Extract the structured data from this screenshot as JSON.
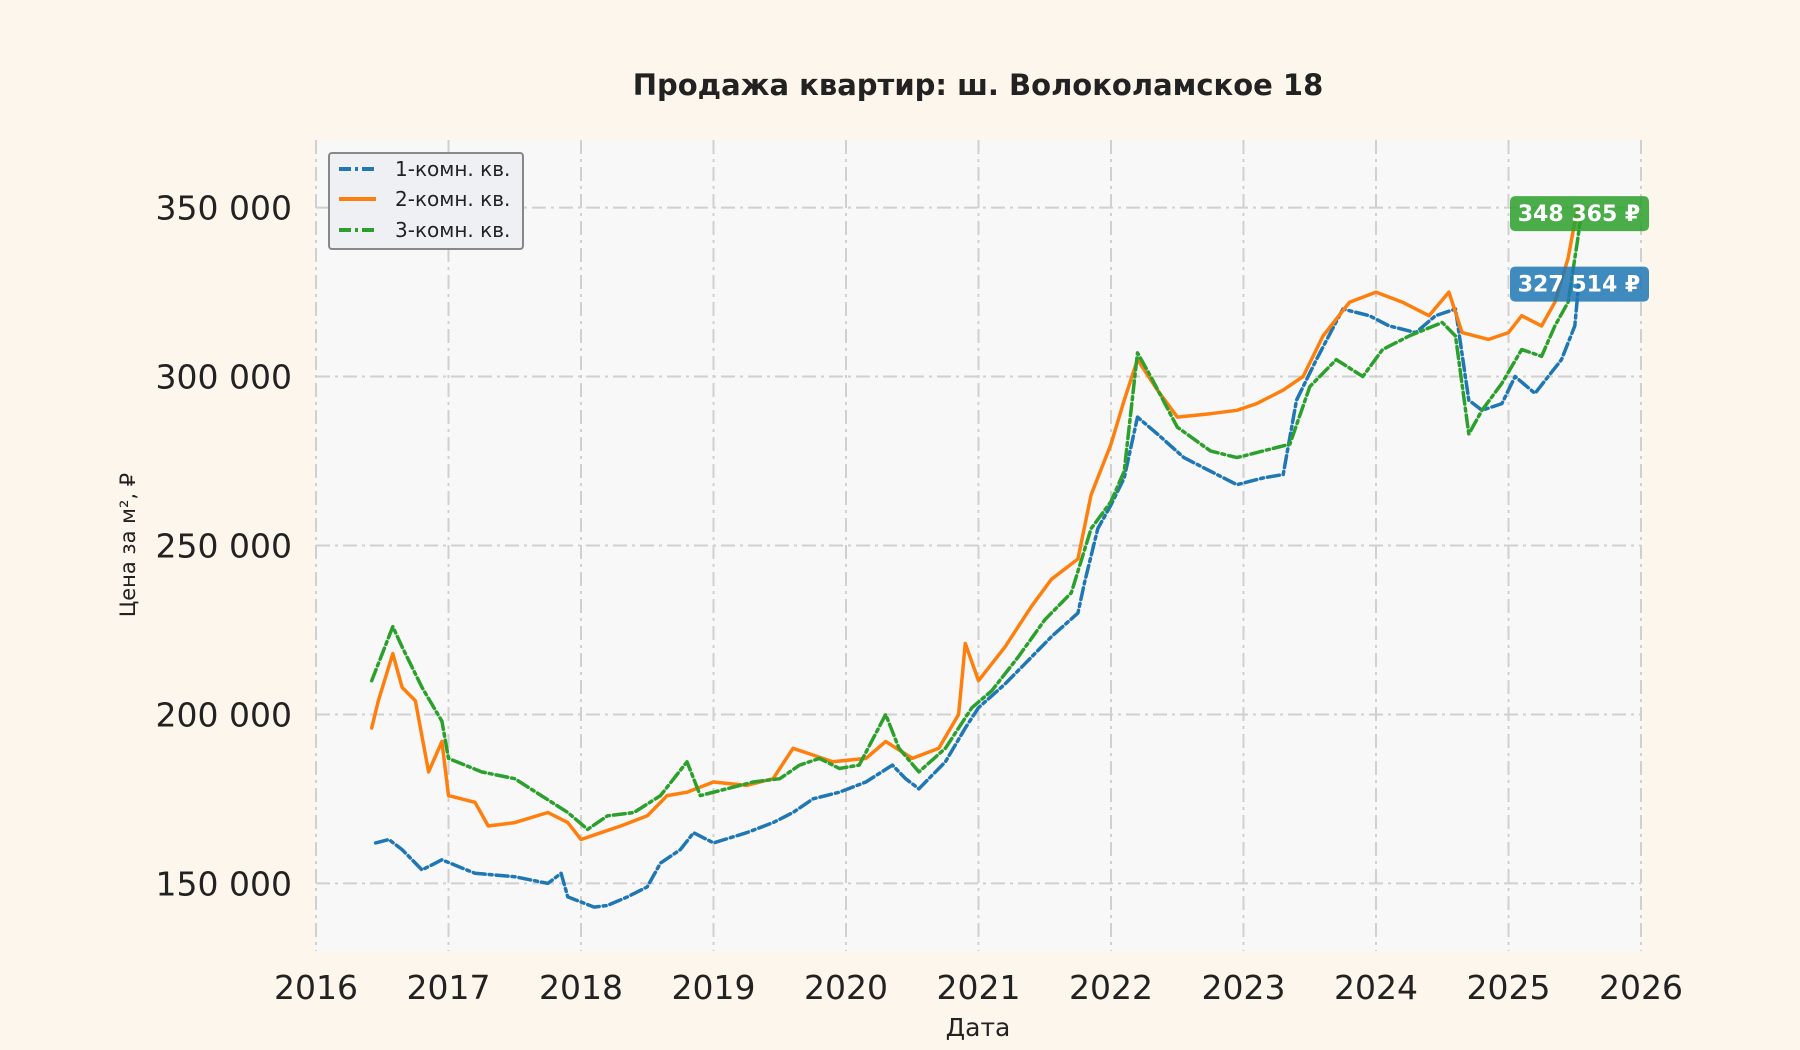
{
  "chart_data": {
    "type": "line",
    "title": "Продажа квартир: ш. Волоколамское 18",
    "xlabel": "Дата",
    "ylabel": "Цена за м², ₽",
    "xlim": [
      2016.0,
      2026.0
    ],
    "ylim": [
      130000,
      370000
    ],
    "x_ticks": [
      "2016",
      "2017",
      "2018",
      "2019",
      "2020",
      "2021",
      "2022",
      "2023",
      "2024",
      "2025",
      "2026"
    ],
    "y_ticks": [
      {
        "value": 150000,
        "label": "150 000"
      },
      {
        "value": 200000,
        "label": "200 000"
      },
      {
        "value": 250000,
        "label": "250 000"
      },
      {
        "value": 300000,
        "label": "300 000"
      },
      {
        "value": 350000,
        "label": "350 000"
      }
    ],
    "grid": true,
    "legend_position": "top-left",
    "series": [
      {
        "name": "1-комн. кв.",
        "color": "#1f77b4",
        "dash": "dashdot",
        "points": [
          [
            2016.45,
            162000
          ],
          [
            2016.55,
            163000
          ],
          [
            2016.65,
            160000
          ],
          [
            2016.8,
            154000
          ],
          [
            2016.95,
            157000
          ],
          [
            2017.2,
            153000
          ],
          [
            2017.5,
            152000
          ],
          [
            2017.75,
            150000
          ],
          [
            2017.85,
            153000
          ],
          [
            2017.9,
            146000
          ],
          [
            2018.1,
            143000
          ],
          [
            2018.2,
            143500
          ],
          [
            2018.35,
            146000
          ],
          [
            2018.5,
            149000
          ],
          [
            2018.6,
            156000
          ],
          [
            2018.75,
            160000
          ],
          [
            2018.85,
            165000
          ],
          [
            2019.0,
            162000
          ],
          [
            2019.25,
            165000
          ],
          [
            2019.45,
            168000
          ],
          [
            2019.6,
            171000
          ],
          [
            2019.75,
            175000
          ],
          [
            2019.95,
            177000
          ],
          [
            2020.15,
            180000
          ],
          [
            2020.35,
            185000
          ],
          [
            2020.45,
            181000
          ],
          [
            2020.55,
            178000
          ],
          [
            2020.75,
            186000
          ],
          [
            2020.9,
            196000
          ],
          [
            2021.0,
            202000
          ],
          [
            2021.2,
            209000
          ],
          [
            2021.35,
            215000
          ],
          [
            2021.55,
            223000
          ],
          [
            2021.75,
            230000
          ],
          [
            2021.8,
            239000
          ],
          [
            2021.9,
            255000
          ],
          [
            2022.0,
            262000
          ],
          [
            2022.1,
            270000
          ],
          [
            2022.2,
            288000
          ],
          [
            2022.35,
            283000
          ],
          [
            2022.55,
            276000
          ],
          [
            2022.75,
            272000
          ],
          [
            2022.95,
            268000
          ],
          [
            2023.15,
            270000
          ],
          [
            2023.3,
            271000
          ],
          [
            2023.4,
            293000
          ],
          [
            2023.55,
            305000
          ],
          [
            2023.75,
            320000
          ],
          [
            2023.95,
            318000
          ],
          [
            2024.1,
            315000
          ],
          [
            2024.3,
            313000
          ],
          [
            2024.45,
            318000
          ],
          [
            2024.6,
            320000
          ],
          [
            2024.7,
            293000
          ],
          [
            2024.8,
            290000
          ],
          [
            2024.95,
            292000
          ],
          [
            2025.05,
            300000
          ],
          [
            2025.2,
            295000
          ],
          [
            2025.3,
            300000
          ],
          [
            2025.4,
            305000
          ],
          [
            2025.5,
            315000
          ],
          [
            2025.53,
            327514
          ]
        ]
      },
      {
        "name": "2-комн. кв.",
        "color": "#ff7f0e",
        "dash": "solid",
        "points": [
          [
            2016.42,
            196000
          ],
          [
            2016.47,
            204000
          ],
          [
            2016.58,
            218000
          ],
          [
            2016.65,
            208000
          ],
          [
            2016.75,
            204000
          ],
          [
            2016.85,
            183000
          ],
          [
            2016.95,
            192000
          ],
          [
            2017.0,
            176000
          ],
          [
            2017.2,
            174000
          ],
          [
            2017.3,
            167000
          ],
          [
            2017.5,
            168000
          ],
          [
            2017.75,
            171000
          ],
          [
            2017.9,
            168000
          ],
          [
            2018.0,
            163000
          ],
          [
            2018.15,
            165000
          ],
          [
            2018.3,
            167000
          ],
          [
            2018.5,
            170000
          ],
          [
            2018.65,
            176000
          ],
          [
            2018.8,
            177000
          ],
          [
            2019.0,
            180000
          ],
          [
            2019.25,
            179000
          ],
          [
            2019.45,
            181000
          ],
          [
            2019.6,
            190000
          ],
          [
            2019.75,
            188000
          ],
          [
            2019.9,
            186000
          ],
          [
            2020.15,
            187000
          ],
          [
            2020.3,
            192000
          ],
          [
            2020.5,
            187000
          ],
          [
            2020.7,
            190000
          ],
          [
            2020.85,
            200000
          ],
          [
            2020.9,
            221000
          ],
          [
            2021.0,
            210000
          ],
          [
            2021.2,
            220000
          ],
          [
            2021.4,
            232000
          ],
          [
            2021.55,
            240000
          ],
          [
            2021.75,
            246000
          ],
          [
            2021.85,
            265000
          ],
          [
            2022.0,
            280000
          ],
          [
            2022.1,
            293000
          ],
          [
            2022.2,
            305000
          ],
          [
            2022.35,
            296000
          ],
          [
            2022.5,
            288000
          ],
          [
            2022.75,
            289000
          ],
          [
            2022.95,
            290000
          ],
          [
            2023.1,
            292000
          ],
          [
            2023.3,
            296000
          ],
          [
            2023.45,
            300000
          ],
          [
            2023.6,
            312000
          ],
          [
            2023.8,
            322000
          ],
          [
            2024.0,
            325000
          ],
          [
            2024.2,
            322000
          ],
          [
            2024.4,
            318000
          ],
          [
            2024.55,
            325000
          ],
          [
            2024.65,
            313000
          ],
          [
            2024.85,
            311000
          ],
          [
            2025.0,
            313000
          ],
          [
            2025.1,
            318000
          ],
          [
            2025.25,
            315000
          ],
          [
            2025.35,
            322000
          ],
          [
            2025.45,
            335000
          ],
          [
            2025.52,
            350000
          ],
          [
            2025.55,
            348365
          ]
        ]
      },
      {
        "name": "3-комн. кв.",
        "color": "#2ca02c",
        "dash": "dashdot",
        "points": [
          [
            2016.42,
            210000
          ],
          [
            2016.5,
            218000
          ],
          [
            2016.58,
            226000
          ],
          [
            2016.65,
            220000
          ],
          [
            2016.8,
            208000
          ],
          [
            2016.95,
            198000
          ],
          [
            2017.0,
            187000
          ],
          [
            2017.25,
            183000
          ],
          [
            2017.5,
            181000
          ],
          [
            2017.7,
            176000
          ],
          [
            2017.9,
            171000
          ],
          [
            2018.05,
            166000
          ],
          [
            2018.2,
            170000
          ],
          [
            2018.4,
            171000
          ],
          [
            2018.6,
            176000
          ],
          [
            2018.8,
            186000
          ],
          [
            2018.9,
            176000
          ],
          [
            2019.1,
            178000
          ],
          [
            2019.3,
            180000
          ],
          [
            2019.5,
            181000
          ],
          [
            2019.65,
            185000
          ],
          [
            2019.8,
            187000
          ],
          [
            2019.95,
            184000
          ],
          [
            2020.1,
            185000
          ],
          [
            2020.3,
            200000
          ],
          [
            2020.4,
            190000
          ],
          [
            2020.55,
            183000
          ],
          [
            2020.75,
            190000
          ],
          [
            2020.95,
            202000
          ],
          [
            2021.1,
            207000
          ],
          [
            2021.3,
            217000
          ],
          [
            2021.5,
            228000
          ],
          [
            2021.7,
            236000
          ],
          [
            2021.85,
            255000
          ],
          [
            2022.0,
            263000
          ],
          [
            2022.1,
            272000
          ],
          [
            2022.2,
            307000
          ],
          [
            2022.3,
            300000
          ],
          [
            2022.5,
            285000
          ],
          [
            2022.75,
            278000
          ],
          [
            2022.95,
            276000
          ],
          [
            2023.15,
            278000
          ],
          [
            2023.35,
            280000
          ],
          [
            2023.5,
            297000
          ],
          [
            2023.7,
            305000
          ],
          [
            2023.9,
            300000
          ],
          [
            2024.05,
            308000
          ],
          [
            2024.25,
            312000
          ],
          [
            2024.5,
            316000
          ],
          [
            2024.6,
            312000
          ],
          [
            2024.7,
            283000
          ],
          [
            2024.8,
            290000
          ],
          [
            2024.95,
            298000
          ],
          [
            2025.1,
            308000
          ],
          [
            2025.25,
            306000
          ],
          [
            2025.35,
            315000
          ],
          [
            2025.45,
            322000
          ],
          [
            2025.52,
            340000
          ],
          [
            2025.55,
            348365
          ]
        ]
      }
    ],
    "annotations": [
      {
        "text": "348 365 ₽",
        "value": 348365,
        "color": "#2ca02c"
      },
      {
        "text": "327 514 ₽",
        "value": 327514,
        "color": "#1f77b4"
      }
    ]
  }
}
